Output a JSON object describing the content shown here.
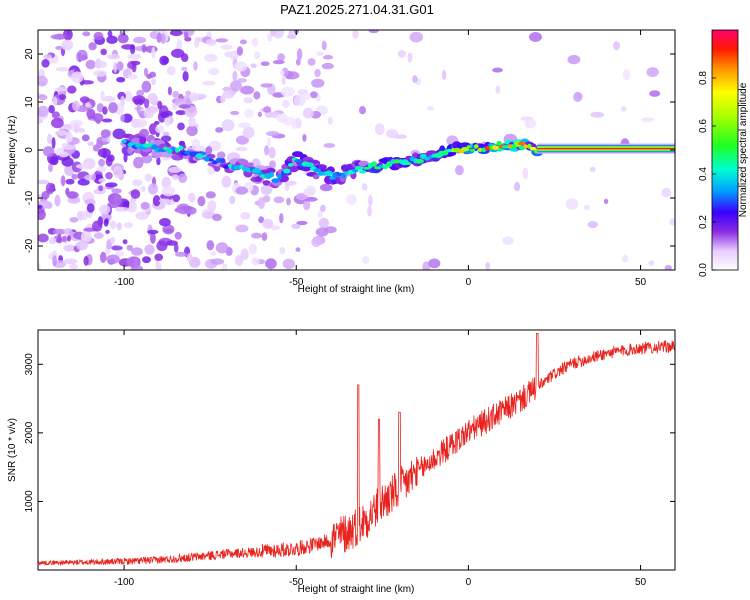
{
  "title": "PAZ1.2025.271.04.31.G01",
  "chart_data": [
    {
      "type": "heatmap",
      "xlabel": "Height of straight line (km)",
      "ylabel": "Frequency (Hz)",
      "xlim": [
        -125,
        60
      ],
      "ylim": [
        -25,
        25
      ],
      "x_ticks": [
        -100,
        -50,
        0,
        50
      ],
      "y_ticks": [
        -20,
        -10,
        0,
        10,
        20
      ],
      "colorbar": {
        "label": "Normalized spectral amplitude",
        "range": [
          0,
          1
        ],
        "ticks": [
          0.0,
          0.2,
          0.4,
          0.6,
          0.8
        ]
      },
      "ridge_trace": {
        "x": [
          -100,
          -90,
          -80,
          -70,
          -60,
          -55,
          -50,
          -45,
          -40,
          -35,
          -30,
          -25,
          -20,
          -15,
          -10,
          -5,
          0,
          5,
          10,
          15,
          20,
          30,
          40,
          50,
          60
        ],
        "freq": [
          1.5,
          0.5,
          -0.5,
          -3,
          -5,
          -6,
          -2,
          -4,
          -5.5,
          -5,
          -4,
          -3,
          -2.5,
          -2,
          -1,
          0,
          0.5,
          0.5,
          1,
          1,
          0.3,
          0.3,
          0.3,
          0.3,
          0.3
        ]
      },
      "noise_region_x": [
        -125,
        -50
      ],
      "stable_tone": {
        "x_start": 20,
        "x_end": 60,
        "frequency": 0.3,
        "amplitude": 1.0
      }
    },
    {
      "type": "line",
      "xlabel": "Height of straight line (km)",
      "ylabel": "SNR (10 * v/v)",
      "xlim": [
        -125,
        60
      ],
      "ylim": [
        0,
        3500
      ],
      "x_ticks": [
        -100,
        -50,
        0,
        50
      ],
      "y_ticks": [
        1000,
        2000,
        3000
      ],
      "color": "#e8231e",
      "trend": {
        "x": [
          -125,
          -110,
          -100,
          -90,
          -80,
          -70,
          -60,
          -50,
          -40,
          -35,
          -30,
          -25,
          -20,
          -15,
          -10,
          -5,
          0,
          5,
          10,
          15,
          20,
          25,
          30,
          40,
          50,
          60
        ],
        "snr": [
          100,
          110,
          120,
          140,
          180,
          230,
          260,
          300,
          420,
          520,
          700,
          950,
          1150,
          1400,
          1600,
          1800,
          2000,
          2150,
          2300,
          2450,
          2650,
          2850,
          3000,
          3150,
          3230,
          3250
        ]
      },
      "peaks": [
        {
          "x": -32,
          "snr": 2700
        },
        {
          "x": -26,
          "snr": 2200
        },
        {
          "x": -20,
          "snr": 2300
        },
        {
          "x": 20,
          "snr": 3450
        }
      ]
    }
  ]
}
